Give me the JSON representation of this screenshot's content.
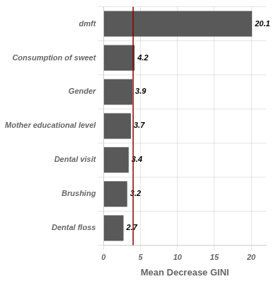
{
  "chart_data": {
    "type": "bar",
    "orientation": "horizontal",
    "categories": [
      "dmft",
      "Consumption of sweet",
      "Gender",
      "Mother educational level",
      "Dental visit",
      "Brushing",
      "Dental floss"
    ],
    "values": [
      20.1,
      4.2,
      3.9,
      3.7,
      3.4,
      3.2,
      2.7
    ],
    "color": "#595959",
    "x_label": "Mean Decrease GINI",
    "xlim": [
      0,
      22
    ],
    "xticks": [
      0,
      5,
      10,
      15,
      20
    ],
    "vline": {
      "x": 4.0,
      "color": "#8B0000"
    },
    "grid": true,
    "data_labels": true
  }
}
